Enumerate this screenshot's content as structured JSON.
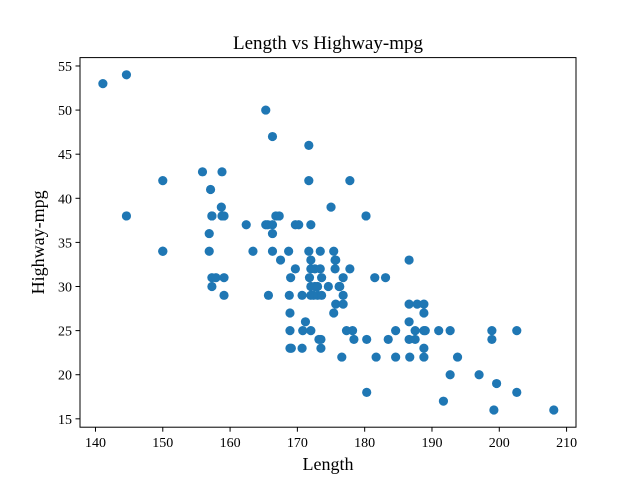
{
  "chart_data": {
    "type": "scatter",
    "title": "Length vs Highway-mpg",
    "xlabel": "Length",
    "ylabel": "Highway-mpg",
    "xlim": [
      137.7,
      211.4
    ],
    "ylim": [
      14.05,
      55.95
    ],
    "xticks": [
      140,
      150,
      160,
      170,
      180,
      190,
      200,
      210
    ],
    "yticks": [
      15,
      20,
      25,
      30,
      35,
      40,
      45,
      50,
      55
    ],
    "grid": false,
    "marker_color": "#1f77b4",
    "points": [
      [
        141.1,
        53
      ],
      [
        144.6,
        54
      ],
      [
        144.6,
        38
      ],
      [
        150.0,
        42
      ],
      [
        150.0,
        34
      ],
      [
        150.0,
        34
      ],
      [
        155.9,
        43
      ],
      [
        157.1,
        41
      ],
      [
        157.3,
        38
      ],
      [
        157.3,
        38
      ],
      [
        156.9,
        36
      ],
      [
        156.9,
        34
      ],
      [
        157.3,
        31
      ],
      [
        157.3,
        30
      ],
      [
        157.9,
        31
      ],
      [
        158.7,
        39
      ],
      [
        158.8,
        38
      ],
      [
        158.8,
        43
      ],
      [
        159.1,
        38
      ],
      [
        159.1,
        31
      ],
      [
        159.1,
        29
      ],
      [
        162.4,
        37
      ],
      [
        163.4,
        34
      ],
      [
        165.3,
        50
      ],
      [
        165.3,
        37
      ],
      [
        165.6,
        37
      ],
      [
        165.7,
        29
      ],
      [
        166.3,
        47
      ],
      [
        166.3,
        37
      ],
      [
        166.3,
        36
      ],
      [
        166.8,
        38
      ],
      [
        167.3,
        38
      ],
      [
        166.3,
        34
      ],
      [
        167.5,
        33
      ],
      [
        168.7,
        34
      ],
      [
        168.8,
        29
      ],
      [
        168.9,
        27
      ],
      [
        169.0,
        31
      ],
      [
        168.9,
        25
      ],
      [
        168.9,
        23
      ],
      [
        169.1,
        23
      ],
      [
        169.7,
        32
      ],
      [
        169.7,
        37
      ],
      [
        170.2,
        37
      ],
      [
        170.7,
        29
      ],
      [
        170.7,
        23
      ],
      [
        170.8,
        25
      ],
      [
        171.2,
        26
      ],
      [
        171.7,
        46
      ],
      [
        171.7,
        42
      ],
      [
        171.7,
        34
      ],
      [
        171.8,
        31
      ],
      [
        172.0,
        37
      ],
      [
        172.0,
        33
      ],
      [
        172.0,
        32
      ],
      [
        172.0,
        30
      ],
      [
        172.0,
        29
      ],
      [
        172.0,
        25
      ],
      [
        172.4,
        29
      ],
      [
        172.6,
        32
      ],
      [
        172.6,
        30
      ],
      [
        173.0,
        30
      ],
      [
        173.0,
        29
      ],
      [
        173.2,
        24
      ],
      [
        173.4,
        34
      ],
      [
        173.4,
        32
      ],
      [
        173.5,
        24
      ],
      [
        173.5,
        23
      ],
      [
        173.6,
        31
      ],
      [
        173.6,
        29
      ],
      [
        174.6,
        30
      ],
      [
        175.0,
        39
      ],
      [
        175.4,
        34
      ],
      [
        175.4,
        27
      ],
      [
        175.6,
        33
      ],
      [
        175.6,
        32
      ],
      [
        175.7,
        33
      ],
      [
        175.7,
        28
      ],
      [
        176.2,
        30
      ],
      [
        176.3,
        30
      ],
      [
        176.6,
        22
      ],
      [
        176.8,
        31
      ],
      [
        176.8,
        29
      ],
      [
        176.8,
        28
      ],
      [
        177.3,
        25
      ],
      [
        177.8,
        42
      ],
      [
        177.8,
        32
      ],
      [
        178.2,
        25
      ],
      [
        178.4,
        24
      ],
      [
        180.2,
        38
      ],
      [
        180.3,
        24
      ],
      [
        180.3,
        18
      ],
      [
        181.5,
        31
      ],
      [
        181.7,
        22
      ],
      [
        183.1,
        31
      ],
      [
        183.5,
        24
      ],
      [
        184.6,
        25
      ],
      [
        184.6,
        22
      ],
      [
        186.6,
        33
      ],
      [
        186.6,
        28
      ],
      [
        186.6,
        26
      ],
      [
        186.6,
        24
      ],
      [
        186.7,
        22
      ],
      [
        187.5,
        25
      ],
      [
        187.5,
        24
      ],
      [
        187.8,
        28
      ],
      [
        188.8,
        28
      ],
      [
        188.8,
        27
      ],
      [
        188.8,
        25
      ],
      [
        188.8,
        23
      ],
      [
        188.8,
        22
      ],
      [
        189.0,
        25
      ],
      [
        191.0,
        25
      ],
      [
        191.7,
        17
      ],
      [
        192.7,
        25
      ],
      [
        192.7,
        20
      ],
      [
        193.8,
        22
      ],
      [
        197.0,
        20
      ],
      [
        198.9,
        25
      ],
      [
        198.9,
        24
      ],
      [
        199.2,
        16
      ],
      [
        199.6,
        19
      ],
      [
        202.6,
        25
      ],
      [
        202.6,
        18
      ],
      [
        208.1,
        16
      ]
    ]
  }
}
